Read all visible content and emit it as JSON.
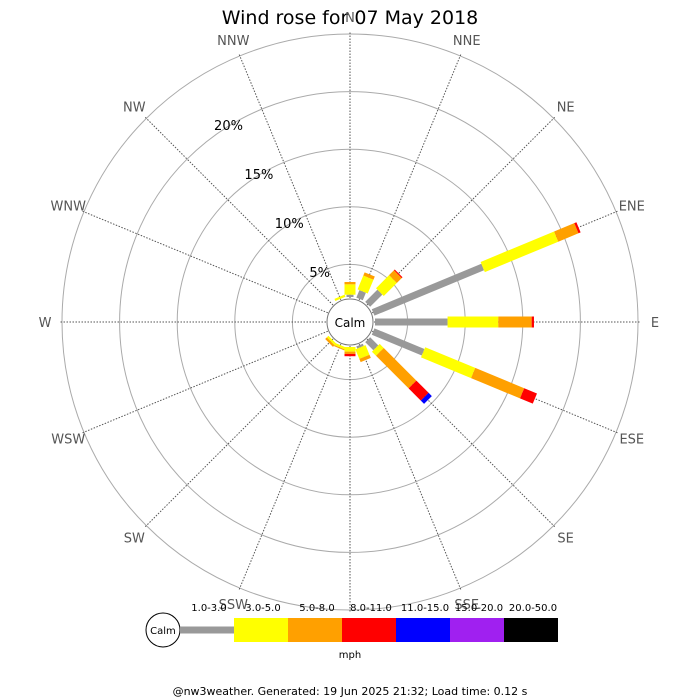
{
  "title": "Wind rose for 07 May 2018",
  "footer": "@nw3weather. Generated: 19 Jun 2025 21:32; Load time: 0.12 s",
  "calm_label": "Calm",
  "units": "mph",
  "chart_data": {
    "type": "wind-rose",
    "title": "Wind rose for 07 May 2018",
    "directions": [
      "N",
      "NNE",
      "NE",
      "ENE",
      "E",
      "ESE",
      "SE",
      "SSE",
      "S",
      "SSW",
      "SW",
      "WSW",
      "W",
      "WNW",
      "NW",
      "NNW"
    ],
    "ring_percentages": [
      5,
      10,
      15,
      20,
      25
    ],
    "ring_labels": [
      "5%",
      "10%",
      "15%",
      "20%"
    ],
    "speed_bins": [
      {
        "label": "1.0-3.0",
        "color": "#999999"
      },
      {
        "label": "3.0-5.0",
        "color": "#ffff00"
      },
      {
        "label": "5.0-8.0",
        "color": "#ffa000"
      },
      {
        "label": "8.0-11.0",
        "color": "#ff0000"
      },
      {
        "label": "11.0-15.0",
        "color": "#0000ff"
      },
      {
        "label": "15.0-20.0",
        "color": "#a020f0"
      },
      {
        "label": "20.0-50.0",
        "color": "#000000"
      }
    ],
    "series": [
      {
        "direction": "N",
        "values": [
          0.2,
          0.9,
          0.2,
          0,
          0,
          0,
          0
        ]
      },
      {
        "direction": "NNE",
        "values": [
          0.7,
          1.3,
          0.3,
          0,
          0,
          0,
          0
        ]
      },
      {
        "direction": "NE",
        "values": [
          1.5,
          1.6,
          0.6,
          0.1,
          0,
          0,
          0
        ]
      },
      {
        "direction": "ENE",
        "values": [
          10.3,
          6.9,
          1.9,
          0.2,
          0,
          0,
          0
        ]
      },
      {
        "direction": "E",
        "values": [
          6.3,
          4.4,
          2.9,
          0.2,
          0,
          0,
          0
        ]
      },
      {
        "direction": "ESE",
        "values": [
          4.7,
          4.7,
          4.6,
          1.2,
          0,
          0,
          0
        ]
      },
      {
        "direction": "SE",
        "values": [
          1.0,
          0.5,
          4.0,
          1.5,
          0.4,
          0,
          0
        ]
      },
      {
        "direction": "SSE",
        "values": [
          0.2,
          0.9,
          0.3,
          0,
          0,
          0,
          0
        ]
      },
      {
        "direction": "S",
        "values": [
          0.0,
          0.4,
          0.2,
          0.2,
          0,
          0,
          0
        ]
      },
      {
        "direction": "SSW",
        "values": [
          0.0,
          0.2,
          0.1,
          0,
          0,
          0,
          0
        ]
      },
      {
        "direction": "SW",
        "values": [
          0.0,
          0.2,
          0.2,
          0,
          0,
          0,
          0
        ]
      },
      {
        "direction": "WSW",
        "values": [
          0,
          0,
          0,
          0,
          0,
          0,
          0
        ]
      },
      {
        "direction": "W",
        "values": [
          0,
          0,
          0,
          0,
          0,
          0,
          0
        ]
      },
      {
        "direction": "WNW",
        "values": [
          0,
          0,
          0,
          0,
          0,
          0,
          0
        ]
      },
      {
        "direction": "NW",
        "values": [
          0,
          0,
          0,
          0,
          0,
          0,
          0
        ]
      },
      {
        "direction": "NNW",
        "values": [
          0.0,
          0.2,
          0,
          0,
          0,
          0,
          0
        ]
      }
    ]
  }
}
